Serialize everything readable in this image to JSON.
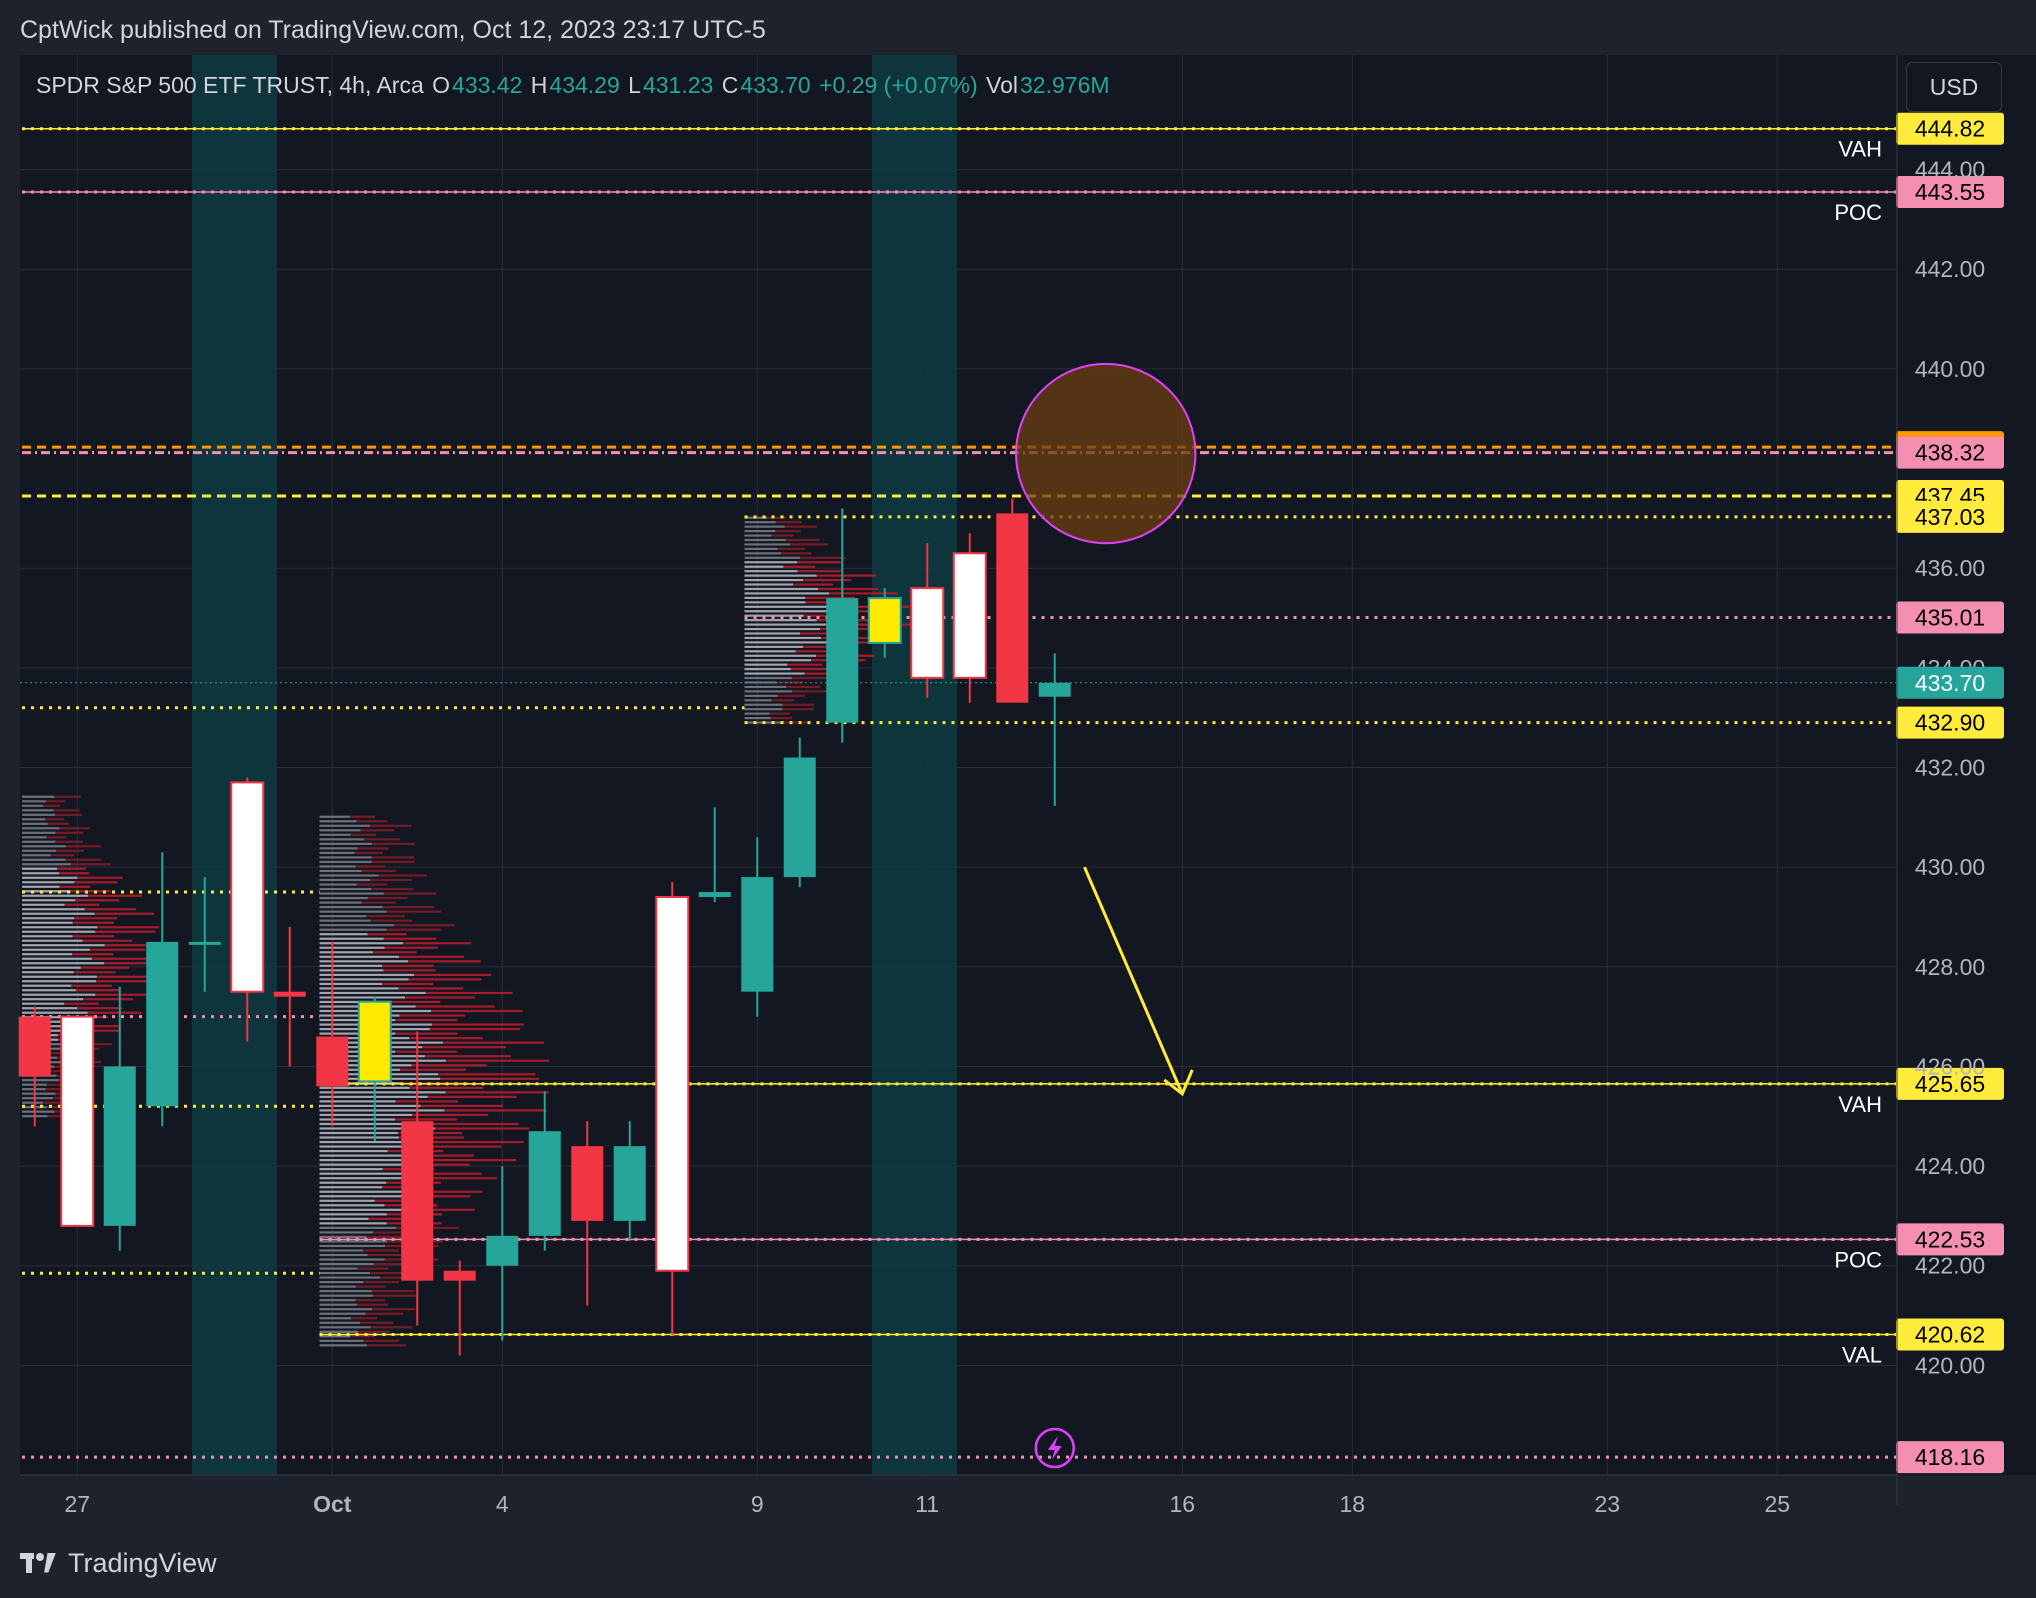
{
  "header": {
    "published": "CptWick published on TradingView.com, Oct 12, 2023 23:17 UTC-5"
  },
  "legend": {
    "symbol": "SPDR S&P 500 ETF TRUST, 4h, Arca",
    "o_label": "O",
    "o": "433.42",
    "h_label": "H",
    "h": "434.29",
    "l_label": "L",
    "l": "431.23",
    "c_label": "C",
    "c": "433.70",
    "change": "+0.29 (+0.07%)",
    "vol_label": "Vol",
    "vol": "32.976M"
  },
  "currency_button": "USD",
  "brand": "TradingView",
  "colors": {
    "background": "#131722",
    "up": "#26a69a",
    "down": "#f23645",
    "white_candle": "#ffffff",
    "yellow_candle": "#ffeb00",
    "level_yellow": "#ffeb3b",
    "level_pink": "#f48fb1",
    "level_orange": "#ff9800",
    "highlight_session": "#0e3b41",
    "circle_stroke": "#e040fb",
    "circle_fill": "#6b3f12",
    "arrow": "#ffeb3b"
  },
  "chart_data": {
    "type": "candlestick",
    "y_axis": {
      "ticks": [
        "420.00",
        "422.00",
        "424.00",
        "426.00",
        "428.00",
        "430.00",
        "432.00",
        "434.00",
        "436.00",
        "440.00",
        "442.00",
        "444.00"
      ],
      "range": [
        417.8,
        446.3
      ]
    },
    "x_axis": {
      "ticks": [
        {
          "label": "27",
          "slot": 1.3
        },
        {
          "label": "Oct",
          "slot": 7.3,
          "bold": true
        },
        {
          "label": "4",
          "slot": 11.3
        },
        {
          "label": "9",
          "slot": 17.3
        },
        {
          "label": "11",
          "slot": 21.3
        },
        {
          "label": "16",
          "slot": 27.3
        },
        {
          "label": "18",
          "slot": 31.3
        },
        {
          "label": "23",
          "slot": 37.3
        },
        {
          "label": "25",
          "slot": 41.3
        }
      ]
    },
    "session_highlights": [
      [
        4.0,
        6.0
      ],
      [
        20.0,
        22.0
      ]
    ],
    "candles": [
      {
        "slot": 0.3,
        "o": 425.8,
        "h": 427.2,
        "l": 424.8,
        "c": 427.0,
        "color": "down"
      },
      {
        "slot": 1.3,
        "o": 427.0,
        "h": 427.0,
        "l": 422.8,
        "c": 422.8,
        "color": "white"
      },
      {
        "slot": 2.3,
        "o": 422.8,
        "h": 427.6,
        "l": 422.3,
        "c": 426.0,
        "color": "up"
      },
      {
        "slot": 3.3,
        "o": 425.2,
        "h": 430.3,
        "l": 424.8,
        "c": 428.5,
        "color": "up"
      },
      {
        "slot": 4.3,
        "o": 428.5,
        "h": 429.8,
        "l": 427.5,
        "c": 428.5,
        "color": "up"
      },
      {
        "slot": 5.3,
        "o": 427.5,
        "h": 431.8,
        "l": 426.5,
        "c": 431.7,
        "color": "white"
      },
      {
        "slot": 6.3,
        "o": 427.5,
        "h": 428.8,
        "l": 426.0,
        "c": 427.4,
        "color": "down"
      },
      {
        "slot": 7.3,
        "o": 426.6,
        "h": 428.5,
        "l": 424.8,
        "c": 425.6,
        "color": "down"
      },
      {
        "slot": 8.3,
        "o": 425.7,
        "h": 427.4,
        "l": 424.5,
        "c": 427.3,
        "color": "yellow"
      },
      {
        "slot": 9.3,
        "o": 424.9,
        "h": 426.7,
        "l": 420.8,
        "c": 421.7,
        "color": "down"
      },
      {
        "slot": 10.3,
        "o": 421.9,
        "h": 422.1,
        "l": 420.2,
        "c": 421.7,
        "color": "down"
      },
      {
        "slot": 11.3,
        "o": 422.0,
        "h": 424.0,
        "l": 420.5,
        "c": 422.6,
        "color": "up"
      },
      {
        "slot": 12.3,
        "o": 422.6,
        "h": 425.5,
        "l": 422.3,
        "c": 424.7,
        "color": "up"
      },
      {
        "slot": 13.3,
        "o": 424.4,
        "h": 424.9,
        "l": 421.2,
        "c": 422.9,
        "color": "down"
      },
      {
        "slot": 14.3,
        "o": 422.9,
        "h": 424.9,
        "l": 422.5,
        "c": 424.4,
        "color": "up"
      },
      {
        "slot": 15.3,
        "o": 421.9,
        "h": 429.7,
        "l": 420.6,
        "c": 429.4,
        "color": "white"
      },
      {
        "slot": 16.3,
        "o": 429.4,
        "h": 431.2,
        "l": 429.3,
        "c": 429.5,
        "color": "up"
      },
      {
        "slot": 17.3,
        "o": 427.5,
        "h": 430.6,
        "l": 427.0,
        "c": 429.8,
        "color": "up"
      },
      {
        "slot": 18.3,
        "o": 429.8,
        "h": 432.6,
        "l": 429.6,
        "c": 432.2,
        "color": "up"
      },
      {
        "slot": 19.3,
        "o": 432.9,
        "h": 437.2,
        "l": 432.5,
        "c": 435.4,
        "color": "up"
      },
      {
        "slot": 20.3,
        "o": 435.4,
        "h": 435.6,
        "l": 434.2,
        "c": 434.5,
        "color": "yellow"
      },
      {
        "slot": 21.3,
        "o": 433.8,
        "h": 436.5,
        "l": 433.4,
        "c": 435.6,
        "color": "white"
      },
      {
        "slot": 22.3,
        "o": 433.8,
        "h": 436.7,
        "l": 433.3,
        "c": 436.3,
        "color": "white"
      },
      {
        "slot": 23.3,
        "o": 437.1,
        "h": 437.4,
        "l": 433.3,
        "c": 433.3,
        "color": "down"
      },
      {
        "slot": 24.3,
        "o": 433.42,
        "h": 434.29,
        "l": 431.23,
        "c": 433.7,
        "color": "up"
      }
    ],
    "volume_profiles": [
      {
        "slot_start": 0.0,
        "slot_end": 6.5,
        "price_min": 425.0,
        "price_max": 431.5
      },
      {
        "slot_start": 7.0,
        "slot_end": 17.0,
        "price_min": 420.4,
        "price_max": 431.1
      },
      {
        "slot_start": 17.0,
        "slot_end": 24.5,
        "price_min": 432.9,
        "price_max": 437.1
      }
    ],
    "levels": [
      {
        "price": 444.82,
        "label": "444.82",
        "style": "solid-dotted",
        "color": "yellow",
        "tag": "VAH",
        "x_start": 0
      },
      {
        "price": 443.55,
        "label": "443.55",
        "style": "solid-dotted",
        "color": "pink",
        "tag": "POC",
        "x_start": 0
      },
      {
        "price": 438.43,
        "label": "438.43",
        "style": "dashed",
        "color": "orange",
        "tag": "",
        "x_start": 0
      },
      {
        "price": 438.32,
        "label": "438.32",
        "style": "dashdot",
        "color": "pink",
        "tag": "",
        "x_start": 0
      },
      {
        "price": 437.45,
        "label": "437.45",
        "style": "dashed",
        "color": "yellow",
        "tag": "",
        "x_start": 0
      },
      {
        "price": 437.03,
        "label": "437.03",
        "style": "dotted",
        "color": "yellow",
        "tag": "",
        "x_start": 17.0
      },
      {
        "price": 435.01,
        "label": "435.01",
        "style": "dotted",
        "color": "pink",
        "tag": "",
        "x_start": 17.0
      },
      {
        "price": 432.9,
        "label": "432.90",
        "style": "dotted",
        "color": "yellow",
        "tag": "",
        "x_start": 17.0
      },
      {
        "price": 433.2,
        "label": "",
        "style": "dotted",
        "color": "yellow",
        "tag": "",
        "x_start": 0,
        "x_end": 17.0
      },
      {
        "price": 429.5,
        "label": "",
        "style": "dotted",
        "color": "yellow",
        "tag": "",
        "x_start": 0,
        "x_end": 7.0
      },
      {
        "price": 427.0,
        "label": "",
        "style": "dotted",
        "color": "pink",
        "tag": "",
        "x_start": 0,
        "x_end": 7.0
      },
      {
        "price": 425.2,
        "label": "",
        "style": "dotted",
        "color": "yellow",
        "tag": "",
        "x_start": 0,
        "x_end": 7.0
      },
      {
        "price": 421.85,
        "label": "",
        "style": "dotted",
        "color": "yellow",
        "tag": "",
        "x_start": 0,
        "x_end": 7.0
      },
      {
        "price": 425.65,
        "label": "425.65",
        "style": "solid-dotted",
        "color": "yellow",
        "tag": "VAH",
        "x_start": 7.0
      },
      {
        "price": 422.53,
        "label": "422.53",
        "style": "solid-dotted",
        "color": "pink",
        "tag": "POC",
        "x_start": 7.0
      },
      {
        "price": 420.62,
        "label": "420.62",
        "style": "solid-dotted",
        "color": "yellow",
        "tag": "VAL",
        "x_start": 7.0
      },
      {
        "price": 418.16,
        "label": "418.16",
        "style": "dotted",
        "color": "pink",
        "tag": "",
        "x_start": 0
      }
    ],
    "last_price": {
      "price": 433.7,
      "label": "433.70"
    },
    "annotations": {
      "circle": {
        "slot": 25.5,
        "price": 438.3,
        "radius_price": 1.8
      },
      "arrow": {
        "from_slot": 25.0,
        "from_price": 430.0,
        "to_slot": 27.3,
        "to_price": 425.65
      },
      "lightning_slot": 24.3
    }
  }
}
